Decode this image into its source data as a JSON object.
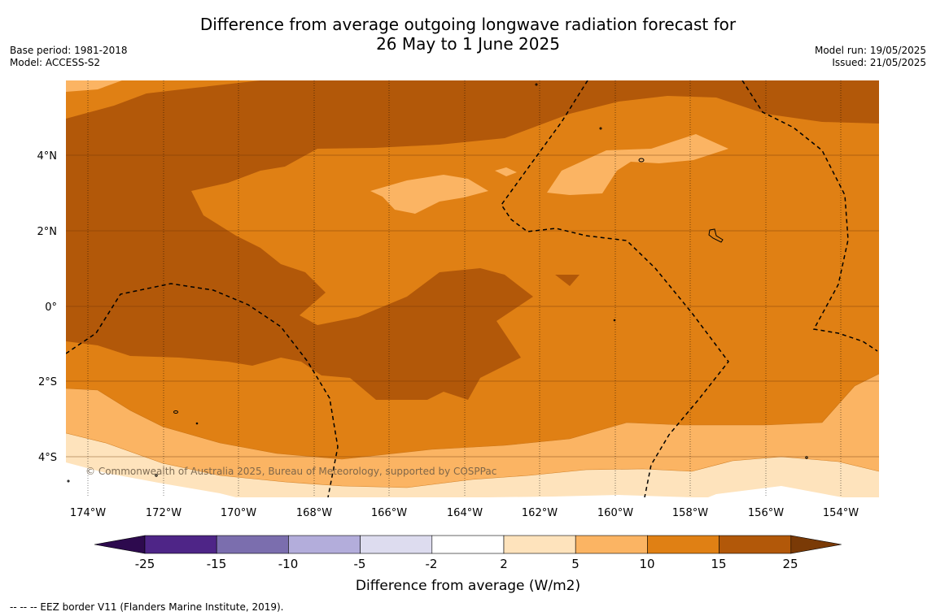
{
  "header": {
    "title_line1": "Difference from average outgoing longwave radiation forecast for",
    "title_line2": "26 May to 1 June 2025",
    "base_period": "Base period: 1981-2018",
    "model": "Model: ACCESS-S2",
    "model_run": "Model run: 19/05/2025",
    "issued": "Issued: 21/05/2025"
  },
  "map": {
    "copyright": "© Commonwealth of Australia 2025, Bureau of Meteorology, supported by COSPPac",
    "lat_labels": [
      "4°N",
      "2°N",
      "0°",
      "2°S",
      "4°S"
    ],
    "lon_labels": [
      "174°W",
      "172°W",
      "170°W",
      "168°W",
      "166°W",
      "164°W",
      "162°W",
      "160°W",
      "158°W",
      "156°W",
      "154°W"
    ]
  },
  "legend": {
    "title": "Difference from average (W/m2)",
    "ticks": [
      "-25",
      "-15",
      "-10",
      "-5",
      "-2",
      "2",
      "5",
      "10",
      "15",
      "25"
    ],
    "colors": {
      "below_min": "#2d0a4e",
      "bins": [
        "#4e2587",
        "#7b6eae",
        "#b3addb",
        "#dddcef",
        "#ffffff",
        "#fee3bc",
        "#fbb463",
        "#e08014",
        "#b25809"
      ],
      "above_max": "#7a3a06"
    }
  },
  "footer": {
    "eez_note": "--  --  -- EEZ border V11 (Flanders Marine Institute, 2019)."
  }
}
